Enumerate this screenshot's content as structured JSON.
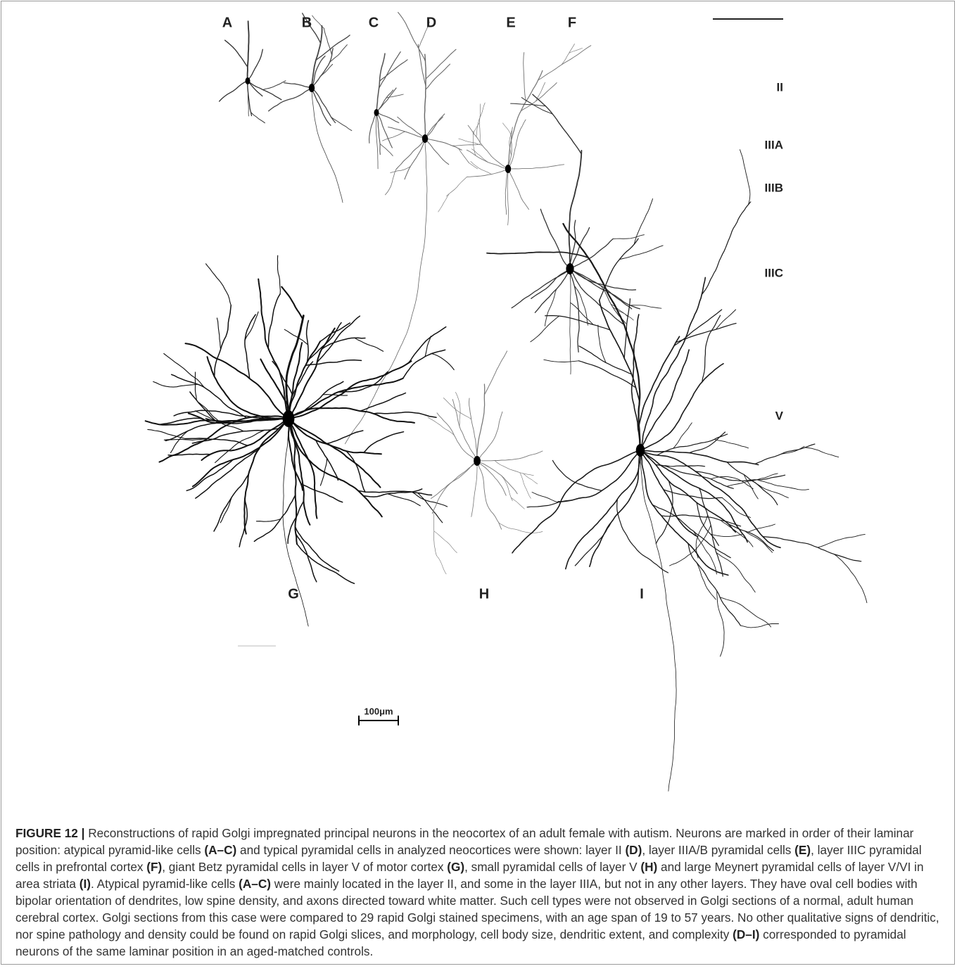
{
  "figure": {
    "panel_labels": [
      "A",
      "B",
      "C",
      "D",
      "E",
      "F",
      "G",
      "H",
      "I"
    ],
    "layer_labels": [
      "II",
      "IIIA",
      "IIIB",
      "IIIC",
      "V"
    ],
    "scale_bar": "100μm",
    "caption": [
      {
        "text": "FIGURE 12 |",
        "bold": true
      },
      {
        "text": " Reconstructions of rapid Golgi impregnated principal neurons in the neocortex of an adult female with autism. Neurons are marked in order of their laminar position: atypical pyramid-like cells ",
        "bold": false
      },
      {
        "text": "(A–C)",
        "bold": true
      },
      {
        "text": " and typical pyramidal cells in analyzed neocortices were shown: layer II ",
        "bold": false
      },
      {
        "text": "(D)",
        "bold": true
      },
      {
        "text": ", layer IIIA/B pyramidal cells ",
        "bold": false
      },
      {
        "text": "(E)",
        "bold": true
      },
      {
        "text": ", layer IIIC pyramidal cells in prefrontal cortex ",
        "bold": false
      },
      {
        "text": "(F)",
        "bold": true
      },
      {
        "text": ", giant Betz pyramidal cells in layer V of motor cortex ",
        "bold": false
      },
      {
        "text": "(G)",
        "bold": true
      },
      {
        "text": ", small pyramidal cells of layer V ",
        "bold": false
      },
      {
        "text": "(H)",
        "bold": true
      },
      {
        "text": " and large Meynert pyramidal cells of layer V/VI in area striata ",
        "bold": false
      },
      {
        "text": "(I)",
        "bold": true
      },
      {
        "text": ". Atypical pyramid-like cells ",
        "bold": false
      },
      {
        "text": "(A–C)",
        "bold": true
      },
      {
        "text": " were mainly located in the layer II, and some in the layer IIIA, but not in any other layers. They have oval cell bodies with bipolar orientation of dendrites, low spine density, and axons directed toward white matter. Such cell types were not observed in Golgi sections of a normal, adult human cerebral cortex. Golgi sections from this case were compared to 29 rapid Golgi stained specimens, with an age span of 19 to 57 years. No other qualitative signs of dendritic, nor spine pathology and density could be found on rapid Golgi slices, and morphology, cell body size, dendritic extent, and complexity ",
        "bold": false
      },
      {
        "text": "(D–I)",
        "bold": true
      },
      {
        "text": " corresponded to pyramidal neurons of the same laminar position in an aged-matched controls.",
        "bold": false
      }
    ]
  }
}
